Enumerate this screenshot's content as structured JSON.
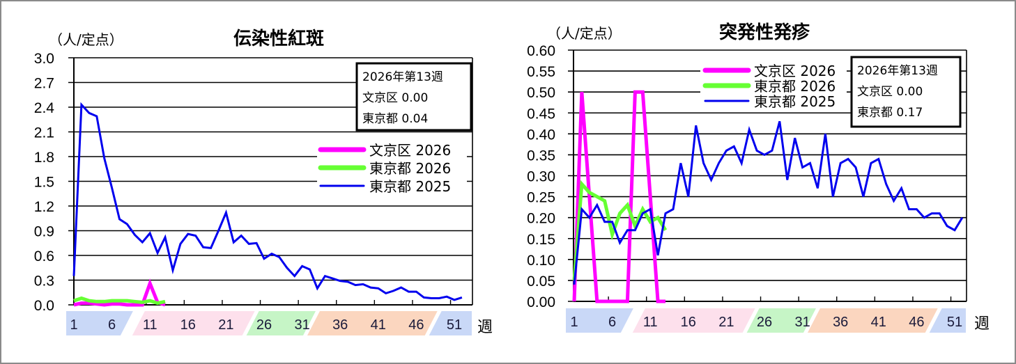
{
  "chart_data": [
    {
      "type": "line",
      "title": "伝染性紅斑",
      "ylabel": "（人/定点）",
      "xlabel": "週",
      "ylim": [
        0,
        3.0
      ],
      "yticks": [
        "0.0",
        "0.3",
        "0.6",
        "0.9",
        "1.2",
        "1.5",
        "1.8",
        "2.1",
        "2.4",
        "2.7",
        "3.0"
      ],
      "xticks": [
        "1",
        "6",
        "11",
        "16",
        "21",
        "26",
        "31",
        "36",
        "41",
        "46",
        "51"
      ],
      "grid": true,
      "legend_position": "right-middle",
      "info_box": {
        "line1": "2026年第13週",
        "line2_label": "文京区",
        "line2_value": "0.00",
        "line3_label": "東京都",
        "line3_value": "0.04"
      },
      "series": [
        {
          "name": "文京区 2026",
          "color": "#ff00ff",
          "values": [
            0.0,
            0.02,
            0.02,
            0.01,
            0.0,
            0.01,
            0.01,
            0.0,
            0.0,
            0.0,
            0.26,
            0.03,
            0.0
          ]
        },
        {
          "name": "東京都 2026",
          "color": "#66ff33",
          "values": [
            0.05,
            0.08,
            0.05,
            0.04,
            0.04,
            0.05,
            0.05,
            0.05,
            0.04,
            0.03,
            0.05,
            0.02,
            0.04
          ]
        },
        {
          "name": "東京都 2025",
          "color": "#0000ee",
          "values": [
            0.35,
            2.43,
            2.33,
            2.29,
            1.78,
            1.42,
            1.04,
            0.98,
            0.85,
            0.76,
            0.87,
            0.63,
            0.82,
            0.42,
            0.74,
            0.86,
            0.84,
            0.7,
            0.69,
            0.9,
            1.12,
            0.76,
            0.84,
            0.74,
            0.75,
            0.56,
            0.62,
            0.58,
            0.45,
            0.35,
            0.47,
            0.43,
            0.2,
            0.35,
            0.32,
            0.29,
            0.28,
            0.24,
            0.25,
            0.21,
            0.2,
            0.14,
            0.17,
            0.21,
            0.16,
            0.16,
            0.09,
            0.08,
            0.08,
            0.1,
            0.06,
            0.09
          ]
        }
      ]
    },
    {
      "type": "line",
      "title": "突発性発疹",
      "ylabel": "（人/定点）",
      "xlabel": "週",
      "ylim": [
        0,
        0.6
      ],
      "yticks": [
        "0.00",
        "0.05",
        "0.10",
        "0.15",
        "0.20",
        "0.25",
        "0.30",
        "0.35",
        "0.40",
        "0.45",
        "0.50",
        "0.55",
        "0.60"
      ],
      "xticks": [
        "1",
        "6",
        "11",
        "16",
        "21",
        "26",
        "31",
        "36",
        "41",
        "46",
        "51"
      ],
      "grid": true,
      "legend_position": "top-middle",
      "info_box": {
        "line1": "2026年第13週",
        "line2_label": "文京区",
        "line2_value": "0.00",
        "line3_label": "東京都",
        "line3_value": "0.17"
      },
      "series": [
        {
          "name": "文京区 2026",
          "color": "#ff00ff",
          "values": [
            0.0,
            0.5,
            0.25,
            0.0,
            0.0,
            0.0,
            0.0,
            0.0,
            0.5,
            0.5,
            0.25,
            0.0,
            0.0
          ]
        },
        {
          "name": "東京都 2026",
          "color": "#66ff33",
          "values": [
            0.05,
            0.28,
            0.26,
            0.25,
            0.24,
            0.16,
            0.21,
            0.23,
            0.18,
            0.22,
            0.19,
            0.2,
            0.17
          ]
        },
        {
          "name": "東京都 2025",
          "color": "#0000ee",
          "values": [
            0.04,
            0.22,
            0.2,
            0.23,
            0.19,
            0.19,
            0.14,
            0.17,
            0.17,
            0.21,
            0.22,
            0.11,
            0.21,
            0.22,
            0.33,
            0.25,
            0.42,
            0.33,
            0.29,
            0.33,
            0.36,
            0.37,
            0.33,
            0.41,
            0.36,
            0.35,
            0.36,
            0.43,
            0.29,
            0.39,
            0.32,
            0.33,
            0.27,
            0.4,
            0.25,
            0.33,
            0.34,
            0.32,
            0.25,
            0.33,
            0.34,
            0.28,
            0.24,
            0.27,
            0.22,
            0.22,
            0.2,
            0.21,
            0.21,
            0.18,
            0.17,
            0.2
          ]
        }
      ]
    }
  ],
  "week_bands": [
    {
      "from": 1,
      "to": 8,
      "color": "#c9d8f7"
    },
    {
      "from": 9,
      "to": 24,
      "color": "#fde0ec"
    },
    {
      "from": 24,
      "to": 32,
      "color": "#c6f5c6"
    },
    {
      "from": 32,
      "to": 48,
      "color": "#fbd6bf"
    },
    {
      "from": 48,
      "to": 53,
      "color": "#c9d8f7"
    }
  ]
}
